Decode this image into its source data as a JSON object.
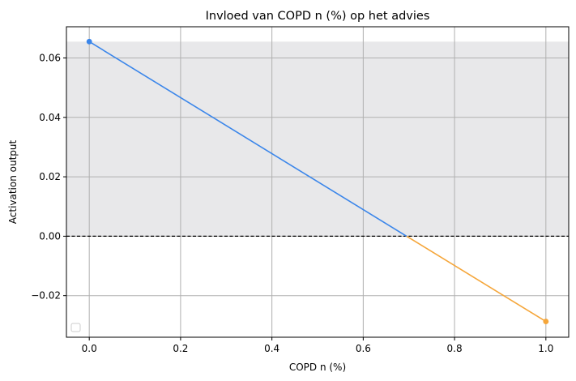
{
  "chart_data": {
    "type": "line",
    "title": "Invloed van COPD n (%) op het advies",
    "xlabel": "COPD n (%)",
    "ylabel": "Activation output",
    "xlim": [
      -0.05,
      1.05
    ],
    "ylim": [
      -0.034,
      0.0705
    ],
    "xticks": [
      0.0,
      0.2,
      0.4,
      0.6,
      0.8,
      1.0
    ],
    "xtick_labels": [
      "0.0",
      "0.2",
      "0.4",
      "0.6",
      "0.8",
      "1.0"
    ],
    "yticks": [
      -0.02,
      0.0,
      0.02,
      0.04,
      0.06
    ],
    "ytick_labels": [
      "−0.02",
      "0.00",
      "0.02",
      "0.04",
      "0.06"
    ],
    "grid": true,
    "legend": "lower-left",
    "reference_line": {
      "y": 0.0,
      "style": "dashed",
      "color": "#000000"
    },
    "shaded_region": {
      "y_from": 0.0,
      "y_to": 0.0655,
      "color": "#e8e8ea"
    },
    "points": [
      {
        "x": 0.0,
        "y": 0.0655
      },
      {
        "x": 1.0,
        "y": -0.0287
      }
    ],
    "zero_crossing_x": 0.695,
    "colors": {
      "positive": "#3b86ea",
      "negative": "#f5a63a"
    }
  }
}
